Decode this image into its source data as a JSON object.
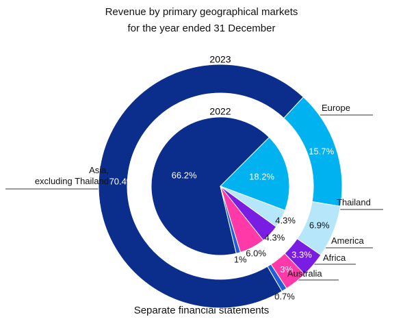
{
  "chart_data": {
    "type": "nested-donut",
    "title": "Revenue by primary geographical markets\nfor the year ended 31 December",
    "footer": "Separate financial statements",
    "categories": [
      "Asia,\nexcluding Thailand",
      "Europe",
      "Thailand",
      "America",
      "Africa",
      "Australia"
    ],
    "colors": [
      "#0b2d8c",
      "#00b3f0",
      "#b5e6fa",
      "#7a1de2",
      "#ff3aa8",
      "#1f5fd8"
    ],
    "series": [
      {
        "name": "2023",
        "values": [
          70.4,
          15.7,
          6.9,
          3.3,
          3,
          0.7
        ],
        "value_labels": [
          "70.4%",
          "15.7%",
          "6.9%",
          "3.3%",
          "3%",
          "0.7%"
        ]
      },
      {
        "name": "2022",
        "values": [
          66.2,
          18.2,
          4.3,
          4.3,
          6,
          1
        ],
        "value_labels": [
          "66.2%",
          "18.2%",
          "4.3%",
          "4.3%",
          "6.0%",
          "1%"
        ]
      }
    ]
  }
}
